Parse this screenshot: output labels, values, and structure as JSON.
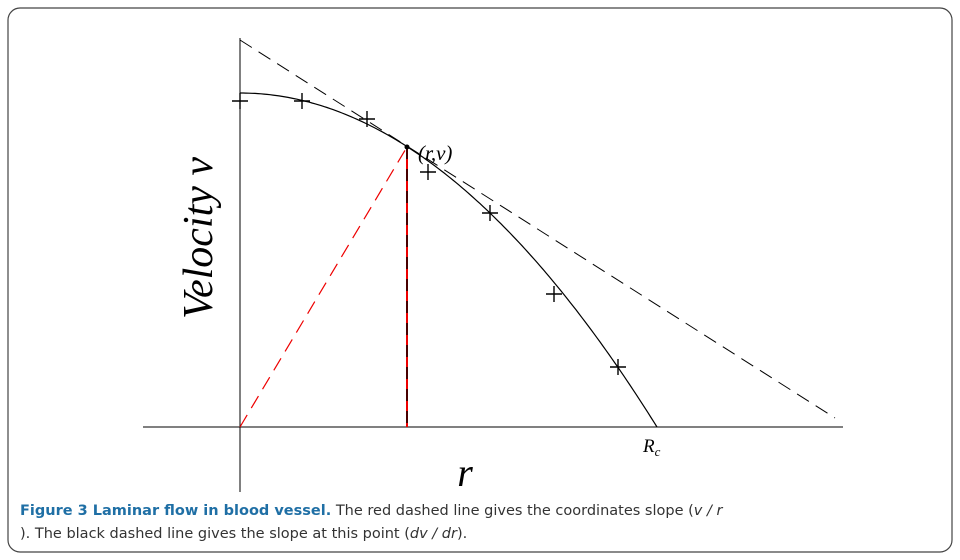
{
  "figure": {
    "y_label": "Velocity v",
    "x_label": "r",
    "point_label": "(r,v)",
    "radius_label": {
      "main": "R",
      "sub": "c"
    },
    "caption": {
      "title": "Figure 3 Laminar flow in blood vessel.",
      "text1": " The red dashed line gives the coordinates slope (",
      "italic1": "v / r",
      "text2": "). The black dashed line gives the slope at this point (",
      "italic2": "dv / dr",
      "text3": ")."
    }
  }
}
